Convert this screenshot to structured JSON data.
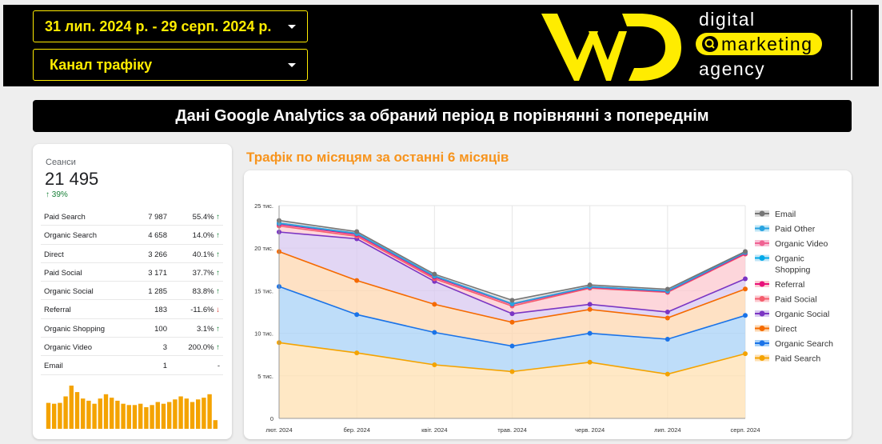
{
  "controls": {
    "date_range": "31 лип. 2024 р. - 29 серп. 2024 р.",
    "channel_filter": "Канал трафіку"
  },
  "branding": {
    "line1": "digital",
    "line2": "marketing",
    "line3": "agency"
  },
  "banner": "Дані Google Analytics за обраний період в порівнянні з попереднім",
  "sessions": {
    "label": "Сеанси",
    "value": "21 495",
    "delta": "39%",
    "rows": [
      {
        "channel": "Paid Search",
        "sessions": "7 987",
        "change": "55.4%",
        "dir": "up"
      },
      {
        "channel": "Organic Search",
        "sessions": "4 658",
        "change": "14.0%",
        "dir": "up"
      },
      {
        "channel": "Direct",
        "sessions": "3 266",
        "change": "40.1%",
        "dir": "up"
      },
      {
        "channel": "Paid Social",
        "sessions": "3 171",
        "change": "37.7%",
        "dir": "up"
      },
      {
        "channel": "Organic Social",
        "sessions": "1 285",
        "change": "83.8%",
        "dir": "up"
      },
      {
        "channel": "Referral",
        "sessions": "183",
        "change": "-11.6%",
        "dir": "down"
      },
      {
        "channel": "Organic Shopping",
        "sessions": "100",
        "change": "3.1%",
        "dir": "up"
      },
      {
        "channel": "Organic Video",
        "sessions": "3",
        "change": "200.0%",
        "dir": "up"
      },
      {
        "channel": "Email",
        "sessions": "1",
        "change": "-",
        "dir": "none"
      }
    ],
    "sparkline": [
      0.6,
      0.58,
      0.6,
      0.75,
      1.0,
      0.85,
      0.7,
      0.65,
      0.58,
      0.7,
      0.8,
      0.72,
      0.65,
      0.58,
      0.55,
      0.55,
      0.58,
      0.5,
      0.55,
      0.62,
      0.58,
      0.62,
      0.68,
      0.75,
      0.7,
      0.62,
      0.68,
      0.72,
      0.8,
      0.2
    ],
    "spark_color": "#f4a300"
  },
  "chart_title": "Трафік по місяцям за останні 6 місяців",
  "chart_data": {
    "type": "area",
    "stacked": true,
    "x": [
      "лют. 2024",
      "бер. 2024",
      "квіт. 2024",
      "трав. 2024",
      "черв. 2024",
      "лип. 2024",
      "серп. 2024"
    ],
    "ylim": [
      0,
      25000
    ],
    "yticks": [
      0,
      5000,
      10000,
      15000,
      20000,
      25000
    ],
    "ytick_labels": [
      "0",
      "5 тис.",
      "10 тис.",
      "15 тис.",
      "20 тис.",
      "25 тис."
    ],
    "grid": true,
    "legend": "right",
    "series": [
      {
        "name": "Paid Search",
        "color": "#f4a300",
        "fill": "#ffe0b2",
        "values": [
          8900,
          7700,
          6300,
          5500,
          6600,
          5200,
          7600
        ]
      },
      {
        "name": "Organic Search",
        "color": "#1a73e8",
        "fill": "#a8d1f7",
        "values": [
          6600,
          4500,
          3800,
          3000,
          3400,
          4100,
          4500
        ]
      },
      {
        "name": "Direct",
        "color": "#f56a00",
        "fill": "#fdd7b0",
        "values": [
          4100,
          4000,
          3300,
          2800,
          2800,
          2500,
          3100
        ]
      },
      {
        "name": "Organic Social",
        "color": "#7b35c3",
        "fill": "#d8c8f0",
        "values": [
          2300,
          4900,
          2700,
          1000,
          600,
          700,
          1200
        ]
      },
      {
        "name": "Paid Social",
        "color": "#f45d6d",
        "fill": "#fcc8cf",
        "values": [
          700,
          300,
          300,
          900,
          1900,
          2300,
          2900
        ]
      },
      {
        "name": "Referral",
        "color": "#e8107a",
        "fill": "#fcc8cf",
        "values": [
          200,
          200,
          200,
          200,
          100,
          100,
          100
        ]
      },
      {
        "name": "Organic Shopping",
        "color": "#00a8e8",
        "fill": "#bfe6f7",
        "values": [
          100,
          100,
          100,
          50,
          50,
          50,
          80
        ]
      },
      {
        "name": "Organic Video",
        "color": "#f06292",
        "fill": "#f8c0d5",
        "values": [
          50,
          50,
          50,
          30,
          30,
          30,
          30
        ]
      },
      {
        "name": "Paid Other",
        "color": "#29a3e0",
        "fill": "#bfe6f7",
        "values": [
          0,
          0,
          0,
          0,
          0,
          0,
          0
        ]
      },
      {
        "name": "Email",
        "color": "#757575",
        "fill": "#d8d8d8",
        "values": [
          300,
          200,
          200,
          400,
          200,
          200,
          100
        ]
      }
    ],
    "legend_order": [
      "Email",
      "Paid Other",
      "Organic Video",
      "Organic Shopping",
      "Referral",
      "Paid Social",
      "Organic Social",
      "Direct",
      "Organic Search",
      "Paid Search"
    ]
  }
}
